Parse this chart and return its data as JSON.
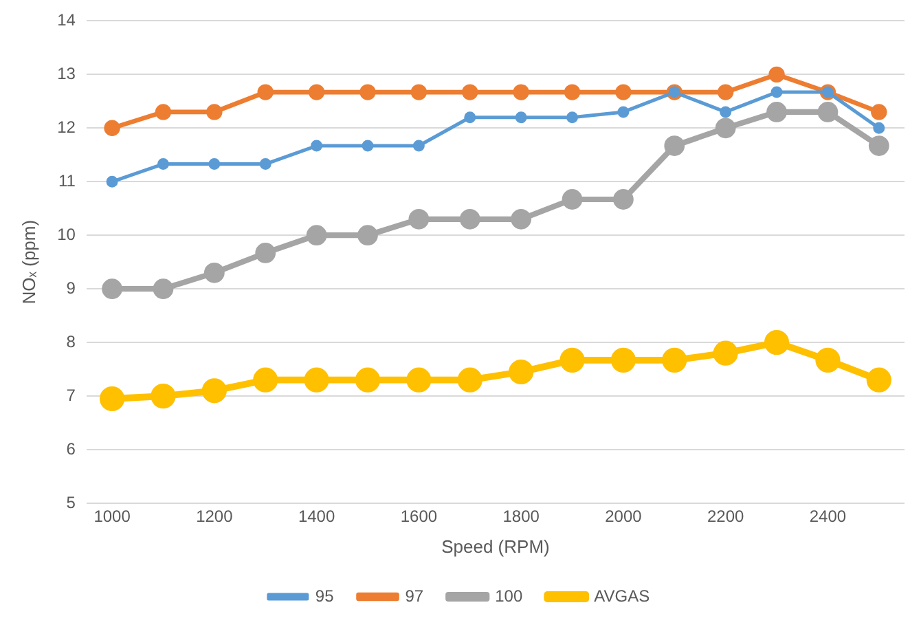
{
  "chart_data": {
    "type": "line",
    "xlabel": "Speed (RPM)",
    "ylabel": "NOₓ (ppm)",
    "x": [
      1000,
      1100,
      1200,
      1300,
      1400,
      1500,
      1600,
      1700,
      1800,
      1900,
      2000,
      2100,
      2200,
      2300,
      2400,
      2500
    ],
    "series": [
      {
        "name": "95",
        "color": "#5b9bd5",
        "values": [
          11,
          11.33,
          11.33,
          11.33,
          11.67,
          11.67,
          11.67,
          12.2,
          12.2,
          12.2,
          12.3,
          12.67,
          12.3,
          12.67,
          12.67,
          12
        ]
      },
      {
        "name": "97",
        "color": "#ed7d31",
        "values": [
          12,
          12.3,
          12.3,
          12.67,
          12.67,
          12.67,
          12.67,
          12.67,
          12.67,
          12.67,
          12.67,
          12.67,
          12.67,
          13,
          12.67,
          12.3
        ]
      },
      {
        "name": "100",
        "color": "#a5a5a5",
        "values": [
          9,
          9,
          9.3,
          9.67,
          10,
          10,
          10.3,
          10.3,
          10.3,
          10.67,
          10.67,
          11.67,
          12,
          12.3,
          12.3,
          11.67
        ]
      },
      {
        "name": "AVGAS",
        "color": "#ffc000",
        "values": [
          6.95,
          7,
          7.1,
          7.3,
          7.3,
          7.3,
          7.3,
          7.3,
          7.45,
          7.67,
          7.67,
          7.67,
          7.8,
          8,
          7.67,
          7.3
        ]
      }
    ],
    "xlim": [
      950,
      2550
    ],
    "xticks": [
      1000,
      1200,
      1400,
      1600,
      1800,
      2000,
      2200,
      2400
    ],
    "ylim": [
      5,
      14
    ],
    "yticks": [
      5,
      6,
      7,
      8,
      9,
      10,
      11,
      12,
      13,
      14
    ],
    "grid": "y",
    "legend": "bottom",
    "marker": "circle",
    "line_style": "solid"
  }
}
